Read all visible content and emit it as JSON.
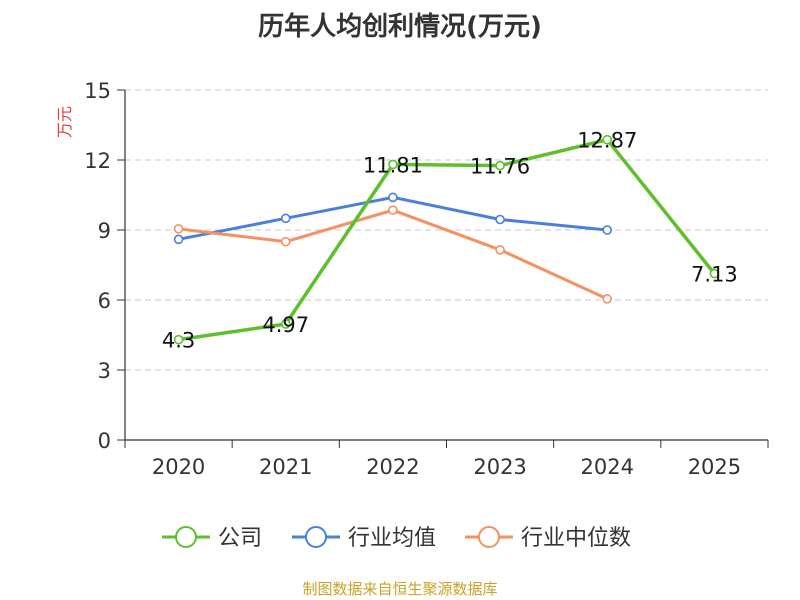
{
  "title": "历年人均创利情况(万元)",
  "footer": "制图数据来自恒生聚源数据库",
  "chart_data": {
    "type": "line",
    "title": "历年人均创利情况(万元)",
    "ylabel": "万元",
    "ylim": [
      0,
      15
    ],
    "yticks": [
      0,
      3,
      6,
      9,
      12,
      15
    ],
    "grid": true,
    "legend_position": "bottom",
    "categories": [
      "2020",
      "2021",
      "2022",
      "2023",
      "2024",
      "2025"
    ],
    "series": [
      {
        "name": "公司",
        "color": "#5dbf2a",
        "values": [
          4.3,
          4.97,
          11.81,
          11.76,
          12.87,
          7.13
        ],
        "labels": [
          "4.3",
          "4.97",
          "11.81",
          "11.76",
          "12.87",
          "7.13"
        ]
      },
      {
        "name": "行业均值",
        "color": "#4a7fdb",
        "values": [
          8.6,
          9.5,
          10.4,
          9.45,
          9.0,
          null
        ]
      },
      {
        "name": "行业中位数",
        "color": "#f59160",
        "values": [
          9.05,
          8.5,
          9.85,
          8.15,
          6.05,
          null
        ]
      }
    ]
  }
}
